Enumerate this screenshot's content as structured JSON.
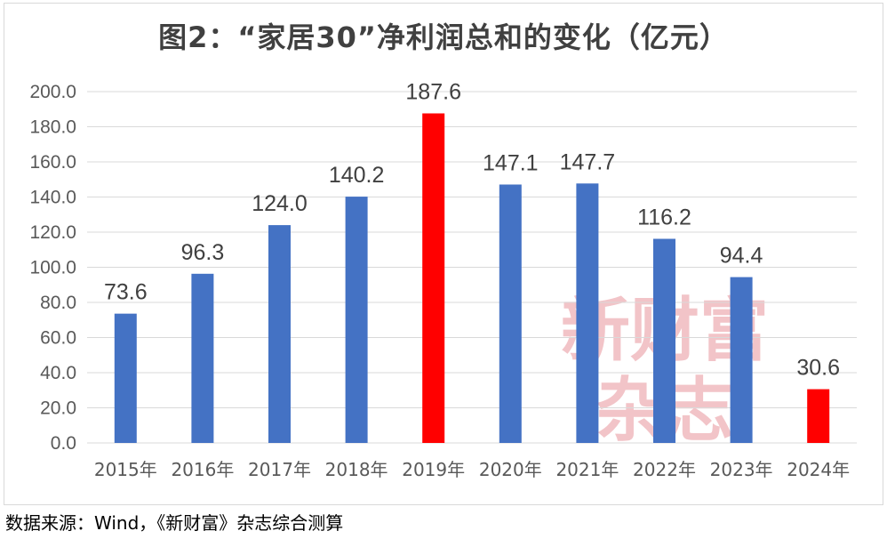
{
  "chart_data": {
    "type": "bar",
    "title": "图2：“家居30”净利润总和的变化（亿元）",
    "categories": [
      "2015年",
      "2016年",
      "2017年",
      "2018年",
      "2019年",
      "2020年",
      "2021年",
      "2022年",
      "2023年",
      "2024年"
    ],
    "values": [
      73.6,
      96.3,
      124.0,
      140.2,
      187.6,
      147.1,
      147.7,
      116.2,
      94.4,
      30.6
    ],
    "data_labels": [
      "73.6",
      "96.3",
      "124.0",
      "140.2",
      "187.6",
      "147.1",
      "147.7",
      "116.2",
      "94.4",
      "30.6"
    ],
    "highlight_categories": [
      "2019年",
      "2024年"
    ],
    "ylim": [
      0,
      200
    ],
    "ytick_values": [
      0,
      20,
      40,
      60,
      80,
      100,
      120,
      140,
      160,
      180,
      200
    ],
    "ytick_labels": [
      "0.0",
      "20.0",
      "40.0",
      "60.0",
      "80.0",
      "100.0",
      "120.0",
      "140.0",
      "160.0",
      "180.0",
      "200.0"
    ],
    "xlabel": "",
    "ylabel": "",
    "grid": true,
    "legend": "none",
    "colors": {
      "bar": "#4472c4",
      "highlight": "#ff0000",
      "grid": "#d9d9d9",
      "tick_text": "#595959",
      "label_text": "#404040"
    }
  },
  "watermark": {
    "line1": "新财富",
    "line2": "杂志",
    "color": "#f2c4c8"
  },
  "source_note": "数据来源：Wind，《新财富》杂志综合测算"
}
